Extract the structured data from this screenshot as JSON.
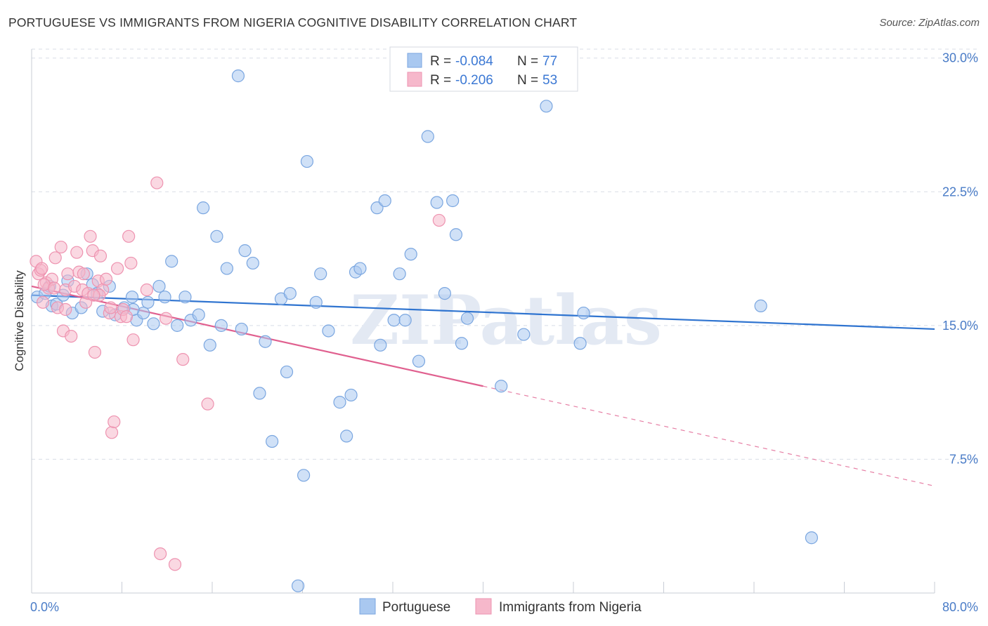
{
  "title": "PORTUGUESE VS IMMIGRANTS FROM NIGERIA COGNITIVE DISABILITY CORRELATION CHART",
  "source": "Source: ZipAtlas.com",
  "watermark": "ZIPatlas",
  "colors": {
    "blue_fill": "#a9c8f0",
    "blue_stroke": "#7aa6e0",
    "blue_line": "#2f74d0",
    "pink_fill": "#f6b8cb",
    "pink_stroke": "#ee93b0",
    "pink_line": "#e0608f",
    "grid": "#d8dde6",
    "axis_text": "#4a7cc7"
  },
  "legend_stats": [
    {
      "r_label": "R =",
      "r": "-0.084",
      "n_label": "N =",
      "n": "77"
    },
    {
      "r_label": "R =",
      "r": "-0.206",
      "n_label": "N =",
      "n": "53"
    }
  ],
  "chart_data": {
    "type": "scatter",
    "xlabel": "",
    "ylabel": "Cognitive Disability",
    "xlim": [
      0,
      80
    ],
    "ylim": [
      0,
      30.5
    ],
    "x_tick_labels": [
      "0.0%",
      "80.0%"
    ],
    "y_ticks": [
      7.5,
      15.0,
      22.5,
      30.0
    ],
    "y_tick_labels": [
      "7.5%",
      "15.0%",
      "22.5%",
      "30.0%"
    ],
    "grid": true,
    "legend_position": "top-center",
    "series": [
      {
        "name": "Portuguese",
        "trend": {
          "x0": 0,
          "y0": 16.7,
          "x1": 80,
          "y1": 14.8,
          "solid_to": 80
        },
        "points": [
          [
            0.5,
            16.6
          ],
          [
            1.2,
            16.8
          ],
          [
            1.8,
            16.1
          ],
          [
            2.2,
            16.2
          ],
          [
            2.8,
            16.7
          ],
          [
            3.6,
            15.7
          ],
          [
            4.4,
            16.0
          ],
          [
            4.9,
            17.9
          ],
          [
            5.4,
            17.3
          ],
          [
            5.8,
            16.8
          ],
          [
            6.3,
            15.8
          ],
          [
            6.9,
            17.2
          ],
          [
            7.4,
            15.6
          ],
          [
            8.2,
            16.0
          ],
          [
            8.9,
            16.6
          ],
          [
            9.3,
            15.3
          ],
          [
            9.9,
            15.7
          ],
          [
            10.3,
            16.3
          ],
          [
            10.8,
            15.1
          ],
          [
            11.3,
            17.2
          ],
          [
            11.8,
            16.6
          ],
          [
            12.4,
            18.6
          ],
          [
            12.9,
            15.0
          ],
          [
            13.6,
            16.6
          ],
          [
            14.1,
            15.3
          ],
          [
            14.8,
            15.6
          ],
          [
            15.2,
            21.6
          ],
          [
            15.8,
            13.9
          ],
          [
            16.4,
            20.0
          ],
          [
            16.8,
            15.0
          ],
          [
            17.3,
            18.2
          ],
          [
            18.3,
            29.0
          ],
          [
            18.6,
            14.8
          ],
          [
            18.9,
            19.2
          ],
          [
            19.6,
            18.5
          ],
          [
            20.2,
            11.2
          ],
          [
            20.7,
            14.1
          ],
          [
            21.3,
            8.5
          ],
          [
            22.1,
            16.5
          ],
          [
            22.6,
            12.4
          ],
          [
            22.9,
            16.8
          ],
          [
            23.6,
            0.4
          ],
          [
            24.1,
            6.6
          ],
          [
            24.4,
            24.2
          ],
          [
            25.2,
            16.3
          ],
          [
            25.6,
            17.9
          ],
          [
            26.3,
            14.7
          ],
          [
            27.3,
            10.7
          ],
          [
            27.9,
            8.8
          ],
          [
            28.3,
            11.1
          ],
          [
            28.7,
            18.0
          ],
          [
            29.1,
            18.2
          ],
          [
            30.6,
            21.6
          ],
          [
            30.9,
            13.9
          ],
          [
            31.3,
            22.0
          ],
          [
            32.1,
            15.3
          ],
          [
            32.6,
            17.9
          ],
          [
            33.1,
            15.3
          ],
          [
            33.6,
            19.0
          ],
          [
            34.3,
            13.0
          ],
          [
            35.1,
            25.6
          ],
          [
            35.9,
            21.9
          ],
          [
            36.6,
            16.8
          ],
          [
            37.3,
            22.0
          ],
          [
            37.6,
            20.1
          ],
          [
            38.1,
            14.0
          ],
          [
            38.6,
            15.4
          ],
          [
            41.6,
            11.6
          ],
          [
            43.6,
            14.5
          ],
          [
            45.6,
            27.3
          ],
          [
            48.6,
            14.0
          ],
          [
            48.9,
            15.7
          ],
          [
            64.6,
            16.1
          ],
          [
            69.1,
            3.1
          ],
          [
            1.6,
            17.2
          ],
          [
            9.0,
            15.9
          ],
          [
            3.2,
            17.5
          ]
        ]
      },
      {
        "name": "Immigrants from Nigeria",
        "trend": {
          "x0": 0,
          "y0": 17.2,
          "x1": 80,
          "y1": 6.0,
          "solid_to": 40
        },
        "points": [
          [
            0.4,
            18.6
          ],
          [
            0.6,
            17.9
          ],
          [
            0.8,
            18.1
          ],
          [
            1.0,
            16.3
          ],
          [
            1.3,
            17.4
          ],
          [
            1.5,
            17.1
          ],
          [
            1.8,
            17.6
          ],
          [
            2.1,
            18.8
          ],
          [
            2.3,
            16.0
          ],
          [
            2.6,
            19.4
          ],
          [
            2.8,
            14.7
          ],
          [
            3.0,
            17.0
          ],
          [
            3.2,
            17.9
          ],
          [
            3.5,
            14.4
          ],
          [
            3.8,
            17.2
          ],
          [
            4.0,
            19.1
          ],
          [
            4.2,
            18.0
          ],
          [
            4.5,
            17.0
          ],
          [
            4.8,
            16.3
          ],
          [
            5.0,
            16.8
          ],
          [
            5.2,
            20.0
          ],
          [
            5.4,
            19.2
          ],
          [
            5.6,
            13.5
          ],
          [
            5.9,
            17.5
          ],
          [
            6.1,
            18.9
          ],
          [
            6.3,
            17.0
          ],
          [
            6.6,
            17.6
          ],
          [
            6.9,
            15.7
          ],
          [
            7.1,
            9.0
          ],
          [
            7.3,
            9.6
          ],
          [
            7.6,
            18.2
          ],
          [
            7.9,
            15.5
          ],
          [
            8.1,
            15.9
          ],
          [
            8.4,
            15.5
          ],
          [
            8.6,
            20.0
          ],
          [
            8.8,
            18.5
          ],
          [
            9.0,
            14.2
          ],
          [
            10.2,
            17.0
          ],
          [
            11.1,
            23.0
          ],
          [
            11.4,
            2.2
          ],
          [
            11.9,
            15.4
          ],
          [
            12.7,
            1.6
          ],
          [
            13.4,
            13.1
          ],
          [
            15.6,
            10.6
          ],
          [
            36.1,
            20.9
          ],
          [
            1.1,
            17.3
          ],
          [
            2.0,
            17.1
          ],
          [
            3.0,
            15.9
          ],
          [
            4.6,
            17.9
          ],
          [
            6.0,
            16.7
          ],
          [
            7.0,
            16.0
          ],
          [
            0.9,
            18.2
          ],
          [
            5.5,
            16.7
          ]
        ]
      }
    ]
  }
}
